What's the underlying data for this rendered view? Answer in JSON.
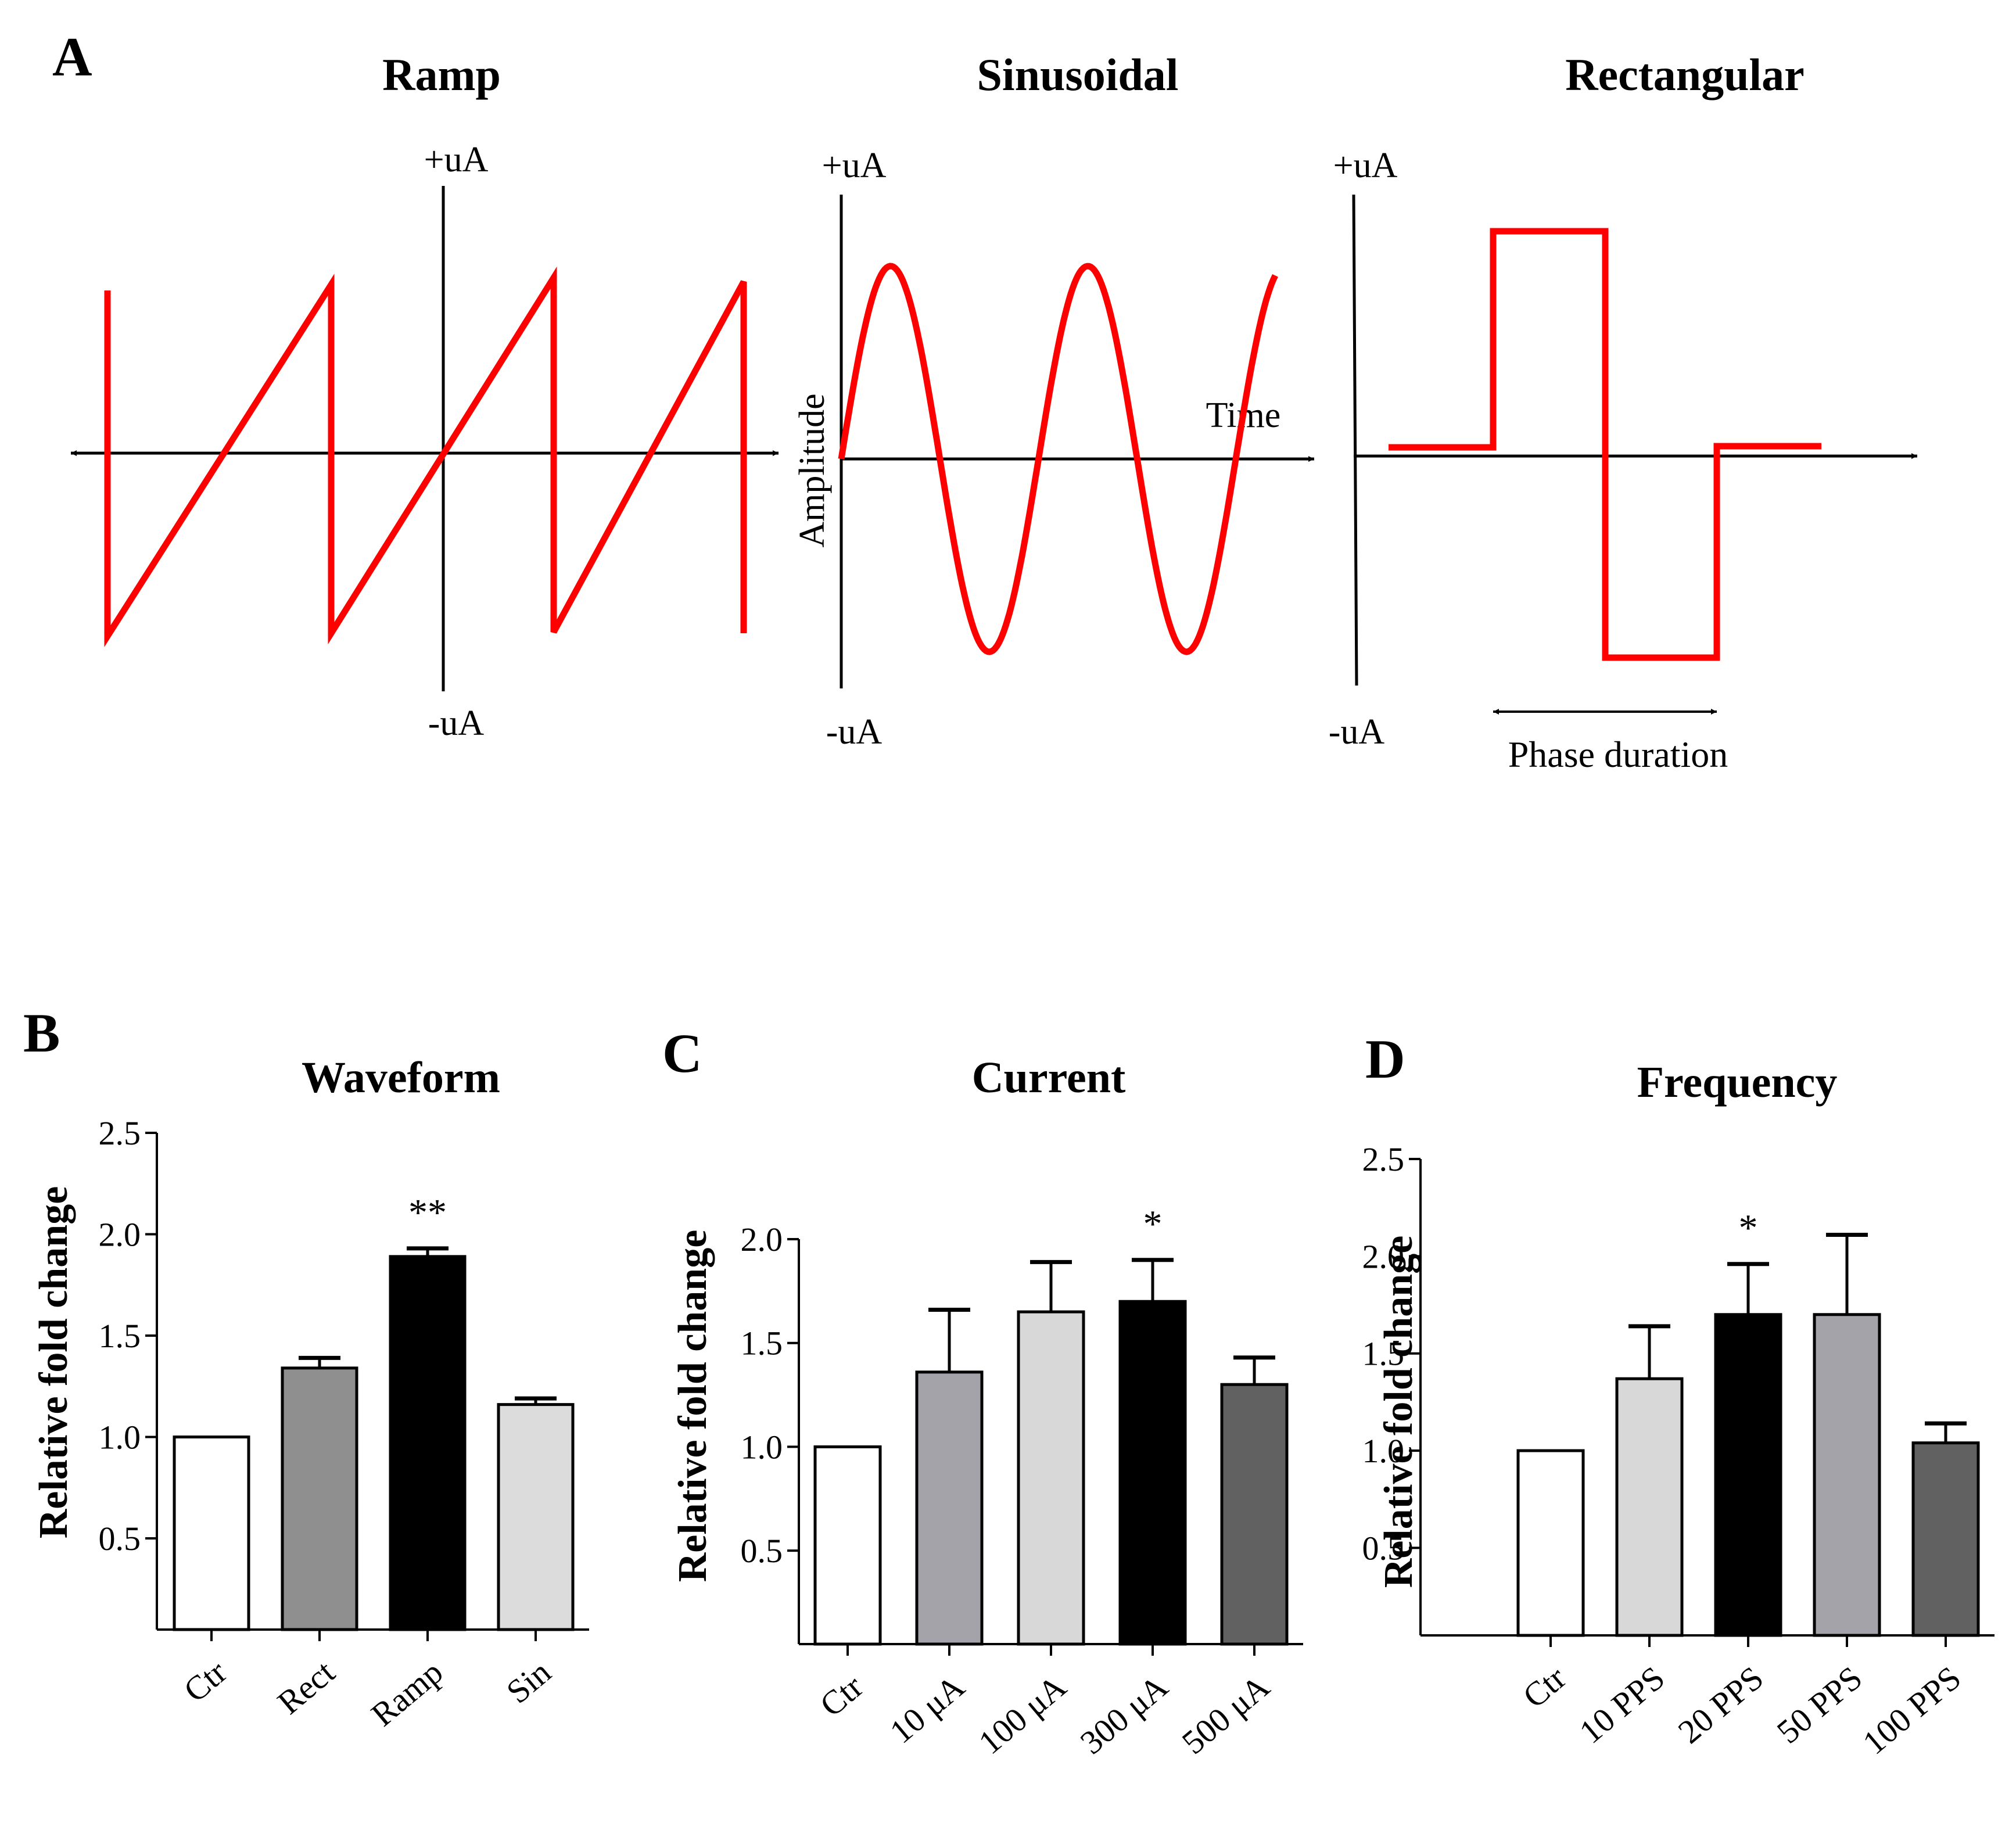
{
  "panel_a": {
    "letter": "A",
    "waveforms": [
      {
        "key": "ramp",
        "title": "Ramp",
        "pos_label": "+uA",
        "neg_label": "-uA"
      },
      {
        "key": "sinusoidal",
        "title": "Sinusoidal",
        "pos_label": "+uA",
        "neg_label": "-uA",
        "y_label": "Amplitude",
        "x_label": "Time"
      },
      {
        "key": "rectangular",
        "title": "Rectangular",
        "pos_label": "+uA",
        "neg_label": "-uA",
        "span_label": "Phase duration"
      }
    ],
    "wave_color": "#ff0000"
  },
  "chart_data": [
    {
      "type": "bar",
      "panel": "B",
      "title": "Waveform",
      "ylabel": "Relative fold change",
      "categories": [
        "Ctr",
        "Rect",
        "Ramp",
        "Sin"
      ],
      "values": [
        1.0,
        1.34,
        1.89,
        1.16
      ],
      "errors": [
        0.0,
        0.05,
        0.04,
        0.03
      ],
      "colors": [
        "#ffffff",
        "#8f8f8f",
        "#000000",
        "#dcdcdc"
      ],
      "annotations": [
        "",
        "",
        "**",
        ""
      ],
      "ylim": [
        0.05,
        2.5
      ],
      "yticks": [
        "0.5",
        "1.0",
        "1.5",
        "2.0",
        "2.5"
      ]
    },
    {
      "type": "bar",
      "panel": "C",
      "title": "Current",
      "ylabel": "Relative fold change",
      "categories": [
        "Ctr",
        "10 μA",
        "100 μA",
        "300 μA",
        "500 μA"
      ],
      "values": [
        1.0,
        1.36,
        1.65,
        1.7,
        1.3
      ],
      "errors": [
        0.0,
        0.3,
        0.24,
        0.2,
        0.13
      ],
      "colors": [
        "#ffffff",
        "#a4a3aa",
        "#d8d8d8",
        "#000000",
        "#616161"
      ],
      "annotations": [
        "",
        "",
        "",
        "*",
        ""
      ],
      "ylim": [
        0.05,
        2.0
      ],
      "yticks": [
        "0.5",
        "1.0",
        "1.5",
        "2.0"
      ]
    },
    {
      "type": "bar",
      "panel": "D",
      "title": "Frequency",
      "ylabel": "Relative fold change",
      "categories": [
        "Ctr",
        "10 PPS",
        "20 PPS",
        "50 PPS",
        "100 PPS"
      ],
      "values": [
        1.0,
        1.37,
        1.7,
        1.7,
        1.04
      ],
      "errors": [
        0.0,
        0.27,
        0.26,
        0.41,
        0.1
      ],
      "colors": [
        "#ffffff",
        "#d8d8d8",
        "#000000",
        "#a4a3aa",
        "#616161"
      ],
      "annotations": [
        "",
        "",
        "*",
        "",
        ""
      ],
      "ylim": [
        0.05,
        2.5
      ],
      "yticks": [
        "0.5",
        "1.0",
        "1.5",
        "2.0",
        "2.5"
      ]
    }
  ]
}
